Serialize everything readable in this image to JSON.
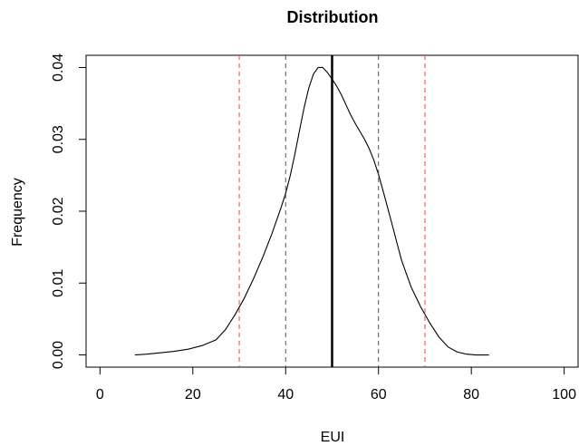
{
  "chart_data": {
    "type": "line",
    "title": "Distribution",
    "xlabel": "EUI",
    "ylabel": "Frequency",
    "xlim": [
      -3,
      103
    ],
    "ylim": [
      -0.0017,
      0.0417
    ],
    "xticks": [
      0,
      20,
      40,
      60,
      80,
      100
    ],
    "yticks": [
      0.0,
      0.01,
      0.02,
      0.03,
      0.04
    ],
    "xtick_labels": [
      "0",
      "20",
      "40",
      "60",
      "80",
      "100"
    ],
    "ytick_labels": [
      "0.00",
      "0.01",
      "0.02",
      "0.03",
      "0.04"
    ],
    "grid": false,
    "series": [
      {
        "color": "#000000",
        "x": [
          7.5,
          10,
          13,
          16,
          19,
          22,
          25,
          27,
          29,
          31,
          33,
          35,
          37,
          39,
          40,
          41,
          42,
          43,
          44,
          45,
          46,
          47,
          48,
          49,
          50,
          51,
          52,
          53,
          54,
          55,
          56,
          57,
          58,
          59,
          60,
          61,
          62,
          63,
          64,
          65,
          67,
          69,
          71,
          73,
          75,
          77,
          79,
          81,
          83.8
        ],
        "y": [
          0.0,
          0.0001,
          0.0003,
          0.0005,
          0.0008,
          0.0013,
          0.0021,
          0.0035,
          0.0055,
          0.0078,
          0.0105,
          0.0135,
          0.0168,
          0.0205,
          0.0225,
          0.025,
          0.028,
          0.0313,
          0.0345,
          0.0372,
          0.0391,
          0.04,
          0.04,
          0.0393,
          0.0384,
          0.0374,
          0.0362,
          0.0348,
          0.0334,
          0.0322,
          0.0311,
          0.03,
          0.0287,
          0.0271,
          0.0251,
          0.0228,
          0.0204,
          0.018,
          0.0155,
          0.0131,
          0.0095,
          0.0068,
          0.0045,
          0.0025,
          0.0011,
          0.0004,
          0.0001,
          0.0,
          0.0
        ]
      }
    ],
    "reference_lines": [
      {
        "x": 30,
        "color": "#ff3b3b",
        "style": "dashed",
        "weight": "thin"
      },
      {
        "x": 40,
        "color": "#555555",
        "style": "dashed",
        "weight": "thin"
      },
      {
        "x": 50,
        "color": "#000000",
        "style": "solid",
        "weight": "thick"
      },
      {
        "x": 60,
        "color": "#555555",
        "style": "dashed",
        "weight": "thin"
      },
      {
        "x": 70,
        "color": "#ff3b3b",
        "style": "dashed",
        "weight": "thin"
      }
    ]
  }
}
